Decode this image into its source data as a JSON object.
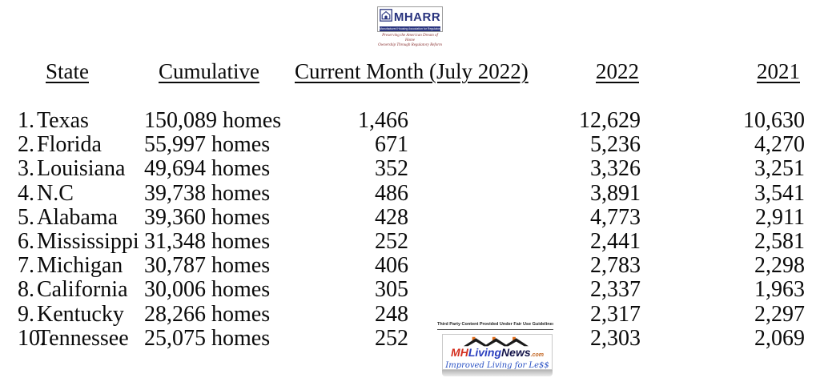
{
  "mharr_logo": {
    "name": "MHARR",
    "bar_text": "Manufactured Housing Association for Regulatory Reform",
    "tagline_line1": "Preserving the American Dream of Home",
    "tagline_line2": "Ownership Through Regulatory Reform",
    "navy": "#28337e",
    "maroon": "#8a3333"
  },
  "table": {
    "headers": [
      "State",
      "Cumulative",
      "Current Month (July 2022)",
      "2022",
      "2021"
    ],
    "rows": [
      {
        "rank": "1.",
        "state": "Texas",
        "cumulative": "150,089 homes",
        "current_month": "1,466",
        "year_2022": "12,629",
        "year_2021": "10,630"
      },
      {
        "rank": "2.",
        "state": "Florida",
        "cumulative": "55,997 homes",
        "current_month": "671",
        "year_2022": "5,236",
        "year_2021": "4,270"
      },
      {
        "rank": "3.",
        "state": "Louisiana",
        "cumulative": "49,694 homes",
        "current_month": "352",
        "year_2022": "3,326",
        "year_2021": "3,251"
      },
      {
        "rank": "4.",
        "state": "N.C",
        "cumulative": "39,738 homes",
        "current_month": "486",
        "year_2022": "3,891",
        "year_2021": "3,541"
      },
      {
        "rank": "5.",
        "state": "Alabama",
        "cumulative": "39,360 homes",
        "current_month": "428",
        "year_2022": "4,773",
        "year_2021": "2,911"
      },
      {
        "rank": "6.",
        "state": "Mississippi",
        "cumulative": "31,348 homes",
        "current_month": "252",
        "year_2022": "2,441",
        "year_2021": "2,581"
      },
      {
        "rank": "7.",
        "state": "Michigan",
        "cumulative": "30,787 homes",
        "current_month": "406",
        "year_2022": "2,783",
        "year_2021": "2,298"
      },
      {
        "rank": "8.",
        "state": "California",
        "cumulative": "30,006 homes",
        "current_month": "305",
        "year_2022": "2,337",
        "year_2021": "1,963"
      },
      {
        "rank": "9.",
        "state": "Kentucky",
        "cumulative": "28,266 homes",
        "current_month": "248",
        "year_2022": "2,317",
        "year_2021": "2,297"
      },
      {
        "rank": "10.",
        "state": "Tennessee",
        "cumulative": "25,075 homes",
        "current_month": "252",
        "year_2022": "2,303",
        "year_2021": "2,069"
      }
    ]
  },
  "chart_data": {
    "type": "table",
    "columns": [
      "State",
      "Cumulative",
      "Current Month (July 2022)",
      "2022",
      "2021"
    ],
    "rows": [
      [
        "Texas",
        "150,089 homes",
        1466,
        12629,
        10630
      ],
      [
        "Florida",
        "55,997 homes",
        671,
        5236,
        4270
      ],
      [
        "Louisiana",
        "49,694 homes",
        352,
        3326,
        3251
      ],
      [
        "N.C",
        "39,738 homes",
        486,
        3891,
        3541
      ],
      [
        "Alabama",
        "39,360 homes",
        428,
        4773,
        2911
      ],
      [
        "Mississippi",
        "31,348 homes",
        252,
        2441,
        2581
      ],
      [
        "Michigan",
        "30,787 homes",
        406,
        2783,
        2298
      ],
      [
        "California",
        "30,006 homes",
        305,
        2337,
        1963
      ],
      [
        "Kentucky",
        "28,266 homes",
        248,
        2317,
        2297
      ],
      [
        "Tennessee",
        "25,075 homes",
        252,
        2303,
        2069
      ]
    ]
  },
  "footer": {
    "fair_use_text": "Third Party Content Provided Under Fair Use Guidelines.",
    "mhlivingnews": {
      "wordmark_mh": "MH",
      "wordmark_living": "Living",
      "wordmark_news": "News",
      "wordmark_com": ".com",
      "tagline": "Improved Living for Le$$",
      "red": "#d42f1f",
      "blue": "#2b3fbf",
      "dark": "#15154a",
      "orange": "#c0601a",
      "tagline_blue": "#2a52c4"
    }
  }
}
